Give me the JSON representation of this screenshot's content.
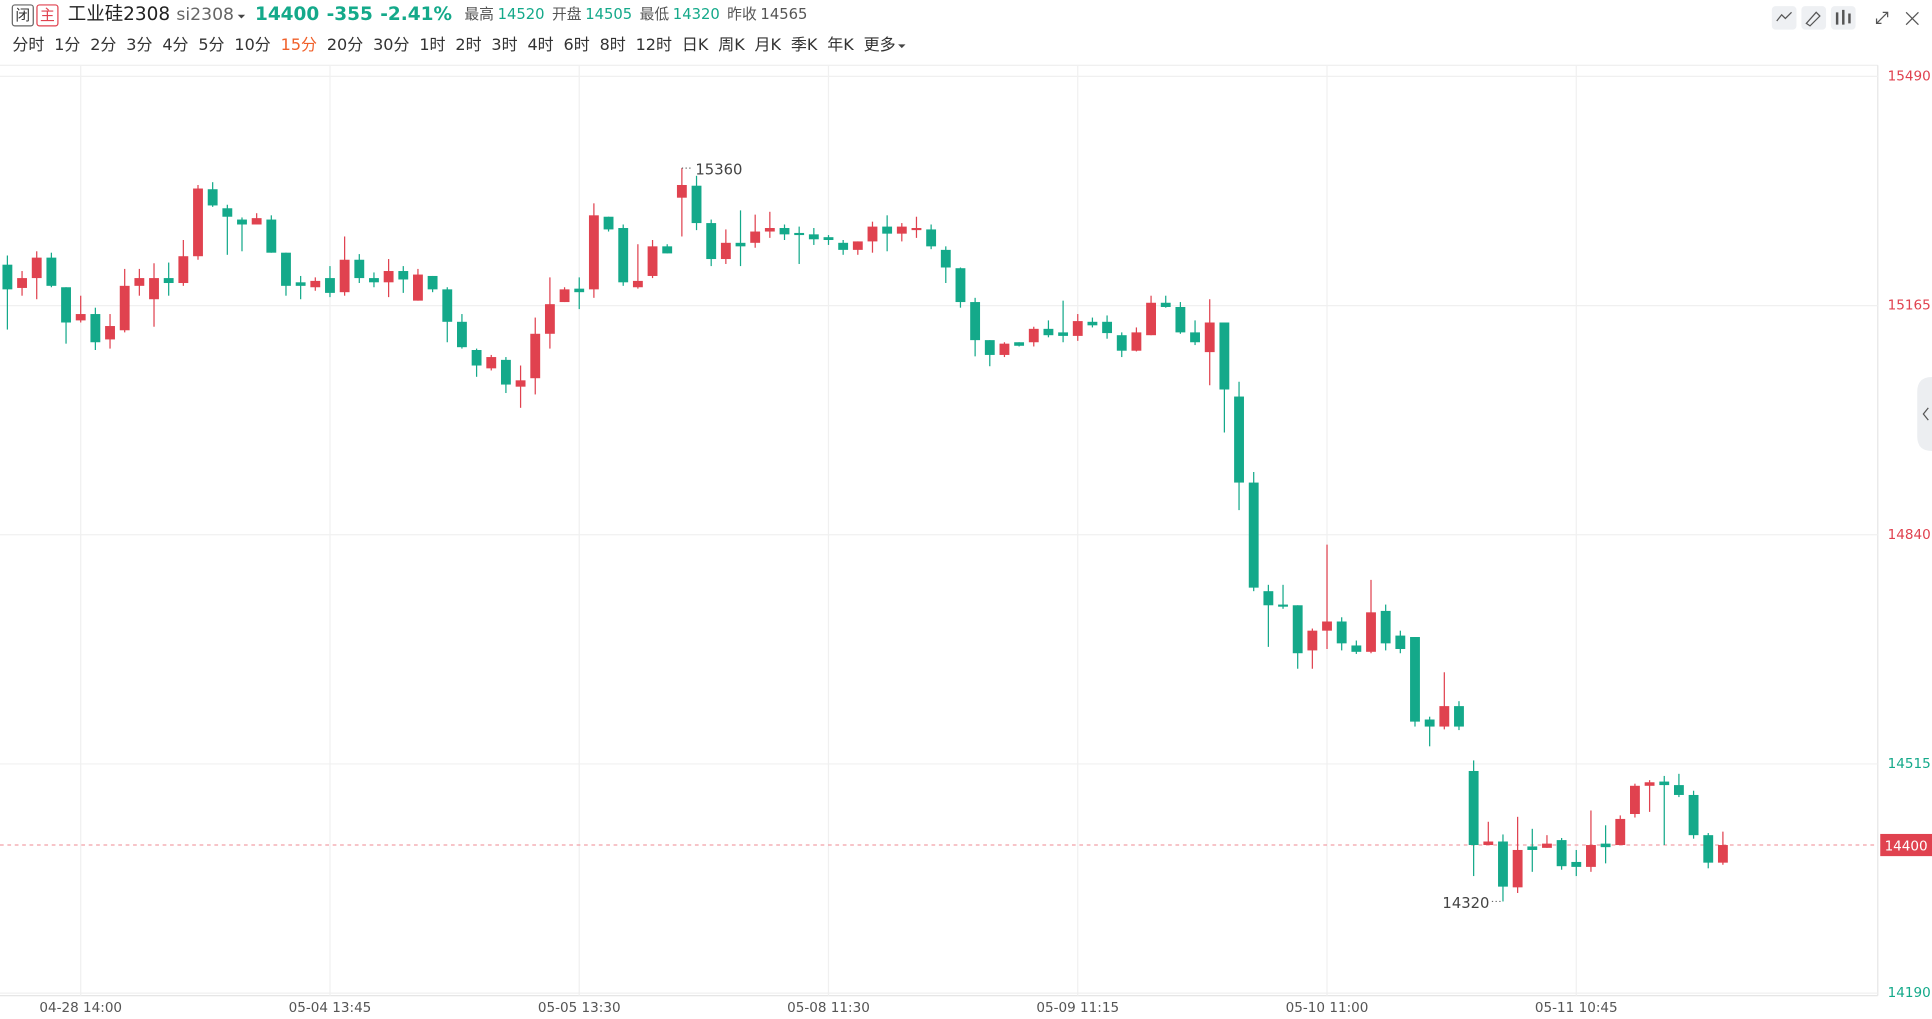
{
  "header": {
    "status": "闭",
    "mode": "主",
    "name": "工业硅2308",
    "code": "si2308",
    "price": 14400,
    "change": -355,
    "change_pct": "-2.41%",
    "stats": [
      {
        "label": "最高",
        "value": 14520
      },
      {
        "label": "开盘",
        "value": 14505
      },
      {
        "label": "最低",
        "value": 14320
      },
      {
        "label": "昨收",
        "value": 14565
      }
    ]
  },
  "periods": [
    "分时",
    "1分",
    "2分",
    "3分",
    "4分",
    "5分",
    "10分",
    "15分",
    "20分",
    "30分",
    "1时",
    "2时",
    "3时",
    "4时",
    "6时",
    "8时",
    "12时",
    "日K",
    "周K",
    "月K",
    "季K",
    "年K"
  ],
  "selected_period": "15分",
  "more": "更多",
  "chart_data": {
    "type": "candlestick",
    "categories": [
      null,
      null,
      null,
      null,
      null,
      "04-28 14:00",
      null,
      null,
      null,
      null,
      null,
      null,
      null,
      null,
      null,
      null,
      null,
      null,
      null,
      null,
      null,
      null,
      "05-04 13:45",
      null,
      null,
      null,
      null,
      null,
      null,
      null,
      null,
      null,
      null,
      null,
      null,
      null,
      null,
      null,
      null,
      "05-05 13:30",
      null,
      null,
      null,
      null,
      null,
      null,
      null,
      null,
      null,
      null,
      null,
      null,
      null,
      null,
      null,
      null,
      "05-08 11:30",
      null,
      null,
      null,
      null,
      null,
      null,
      null,
      null,
      null,
      null,
      null,
      null,
      null,
      null,
      null,
      null,
      "05-09 11:15",
      null,
      null,
      null,
      null,
      null,
      null,
      null,
      null,
      null,
      null,
      null,
      null,
      null,
      null,
      null,
      null,
      "05-10 11:00",
      null,
      null,
      null,
      null,
      null,
      null,
      null,
      null,
      null,
      null,
      null,
      null,
      null,
      null,
      null,
      null,
      "05-11 10:45",
      null,
      null,
      null,
      null,
      null,
      null,
      null,
      null,
      null,
      null
    ],
    "open": [
      15223,
      15190,
      15204,
      15233,
      15191,
      15144,
      15153,
      15117,
      15130,
      15193,
      15174,
      15204,
      15197,
      15235,
      15330,
      15303,
      15287,
      15280,
      15287,
      15240,
      15198,
      15191,
      15204,
      15184,
      15230,
      15204,
      15198,
      15214,
      15172,
      15207,
      15188,
      15142,
      15102,
      15076,
      15088,
      15050,
      15062,
      15125,
      15170,
      15189,
      15188,
      15291,
      15275,
      15191,
      15207,
      15249,
      15318,
      15335,
      15282,
      15231,
      15254,
      15254,
      15270,
      15275,
      15268,
      15266,
      15262,
      15254,
      15244,
      15256,
      15277,
      15267,
      15272,
      15273,
      15244,
      15218,
      15170,
      15116,
      15095,
      15113,
      15113,
      15132,
      15127,
      15122,
      15142,
      15142,
      15123,
      15101,
      15123,
      15169,
      15163,
      15127,
      15099,
      15141,
      15036,
      14914,
      14760,
      14741,
      14740,
      14676,
      14704,
      14717,
      14683,
      14674,
      14732,
      14697,
      14695,
      14578,
      14568,
      14597,
      14505,
      14400,
      14405,
      14340,
      14398,
      14396,
      14407,
      14376,
      14369,
      14402,
      14400,
      14444,
      14484,
      14490,
      14485,
      14471,
      14414,
      14375
    ],
    "high": [
      15236,
      15214,
      15242,
      15240,
      15191,
      15179,
      15162,
      15153,
      15217,
      15217,
      15225,
      15226,
      15258,
      15336,
      15340,
      15308,
      15290,
      15296,
      15293,
      15240,
      15207,
      15205,
      15221,
      15263,
      15238,
      15212,
      15231,
      15221,
      15217,
      15207,
      15191,
      15153,
      15104,
      15095,
      15092,
      15080,
      15148,
      15205,
      15191,
      15205,
      15310,
      15291,
      15280,
      15252,
      15258,
      15252,
      15360,
      15349,
      15287,
      15273,
      15300,
      15294,
      15298,
      15280,
      15277,
      15275,
      15265,
      15258,
      15256,
      15284,
      15293,
      15282,
      15291,
      15280,
      15249,
      15219,
      15176,
      15116,
      15113,
      15113,
      15135,
      15144,
      15172,
      15153,
      15148,
      15151,
      15127,
      15134,
      15179,
      15179,
      15170,
      15144,
      15174,
      15141,
      15057,
      14929,
      14769,
      14769,
      14740,
      14707,
      14826,
      14723,
      14690,
      14776,
      14741,
      14704,
      14695,
      14582,
      14645,
      14604,
      14520,
      14433,
      14415,
      14440,
      14423,
      14414,
      14410,
      14393,
      14449,
      14428,
      14442,
      14487,
      14492,
      14498,
      14501,
      14477,
      14417,
      14419
    ],
    "low": [
      15131,
      15179,
      15174,
      15191,
      15111,
      15141,
      15102,
      15104,
      15127,
      15179,
      15135,
      15179,
      15193,
      15230,
      15305,
      15237,
      15242,
      15280,
      15240,
      15179,
      15174,
      15186,
      15177,
      15179,
      15197,
      15191,
      15177,
      15183,
      15172,
      15184,
      15113,
      15104,
      15064,
      15073,
      15041,
      15020,
      15039,
      15104,
      15170,
      15160,
      15176,
      15270,
      15193,
      15189,
      15204,
      15239,
      15263,
      15272,
      15221,
      15224,
      15221,
      15247,
      15261,
      15258,
      15224,
      15251,
      15251,
      15237,
      15237,
      15240,
      15242,
      15256,
      15261,
      15245,
      15197,
      15162,
      15093,
      15079,
      15092,
      15107,
      15107,
      15120,
      15113,
      15115,
      15134,
      15118,
      15092,
      15100,
      15123,
      15162,
      15125,
      15109,
      15052,
      14985,
      14875,
      14760,
      14681,
      14735,
      14650,
      14650,
      14678,
      14676,
      14671,
      14672,
      14676,
      14672,
      14568,
      14540,
      14564,
      14563,
      14356,
      14400,
      14320,
      14332,
      14362,
      14396,
      14365,
      14356,
      14362,
      14374,
      14400,
      14439,
      14447,
      14400,
      14468,
      14409,
      14367,
      14372
    ],
    "close": [
      15188,
      15204,
      15233,
      15193,
      15141,
      15153,
      15113,
      15136,
      15193,
      15204,
      15204,
      15197,
      15235,
      15331,
      15307,
      15291,
      15280,
      15289,
      15240,
      15193,
      15193,
      15200,
      15183,
      15230,
      15204,
      15198,
      15214,
      15202,
      15209,
      15188,
      15142,
      15106,
      15080,
      15092,
      15053,
      15059,
      15125,
      15167,
      15188,
      15184,
      15293,
      15273,
      15198,
      15200,
      15249,
      15239,
      15336,
      15282,
      15231,
      15254,
      15249,
      15270,
      15275,
      15266,
      15265,
      15259,
      15258,
      15244,
      15256,
      15277,
      15267,
      15277,
      15275,
      15249,
      15219,
      15170,
      15116,
      15095,
      15111,
      15108,
      15132,
      15123,
      15122,
      15143,
      15137,
      15126,
      15101,
      15127,
      15169,
      15163,
      15127,
      15113,
      15141,
      15046,
      14914,
      14765,
      14740,
      14738,
      14672,
      14704,
      14717,
      14686,
      14674,
      14730,
      14686,
      14678,
      14575,
      14568,
      14597,
      14568,
      14400,
      14405,
      14341,
      14393,
      14393,
      14402,
      14370,
      14369,
      14400,
      14397,
      14437,
      14484,
      14489,
      14485,
      14471,
      14414,
      14375,
      14400
    ],
    "up_color": "#e0424f",
    "down_color": "#14a98a",
    "ylim": [
      14190,
      15490
    ],
    "yticks": [
      14190,
      14515,
      14840,
      15165,
      15490
    ],
    "grid": true,
    "last_price": 14400,
    "high_label": 15360,
    "low_label": 14320
  }
}
